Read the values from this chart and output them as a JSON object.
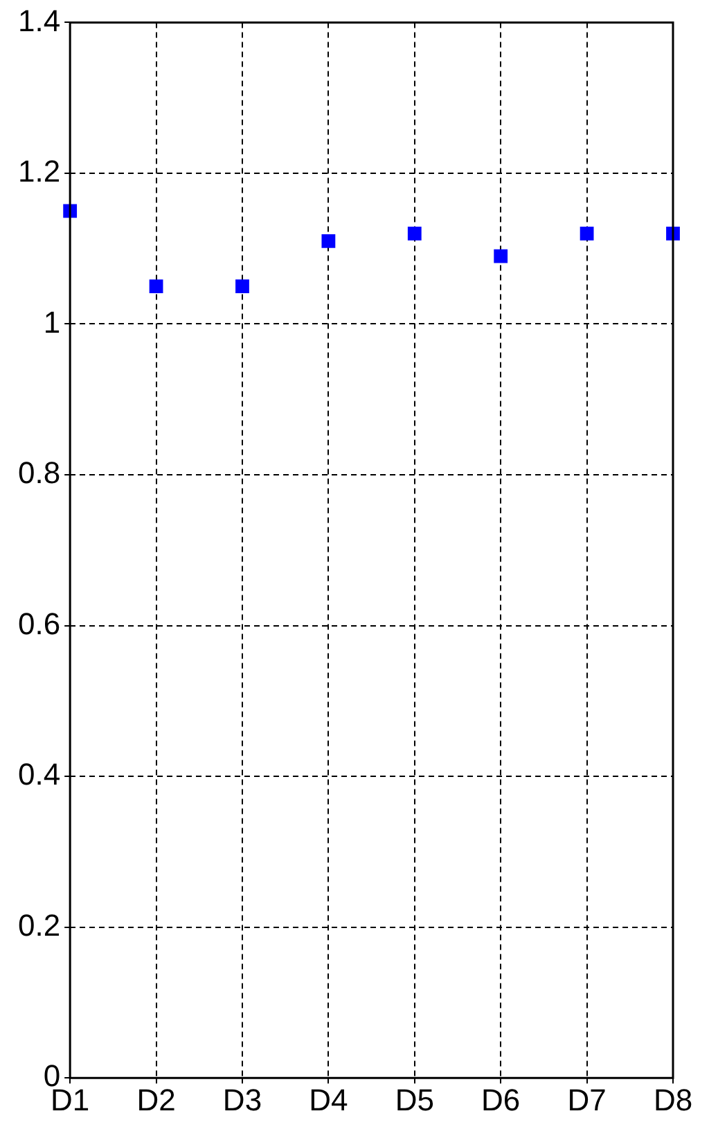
{
  "chart_data": {
    "type": "scatter",
    "categories": [
      "D1",
      "D2",
      "D3",
      "D4",
      "D5",
      "D6",
      "D7",
      "D8"
    ],
    "values": [
      1.15,
      1.05,
      1.05,
      1.11,
      1.12,
      1.09,
      1.12,
      1.12
    ],
    "color": "#0000ff",
    "marker": "square",
    "ylim": [
      0,
      1.4
    ],
    "yticks": [
      0,
      0.2,
      0.4,
      0.6,
      0.8,
      1,
      1.2,
      1.4
    ],
    "grid": true
  }
}
